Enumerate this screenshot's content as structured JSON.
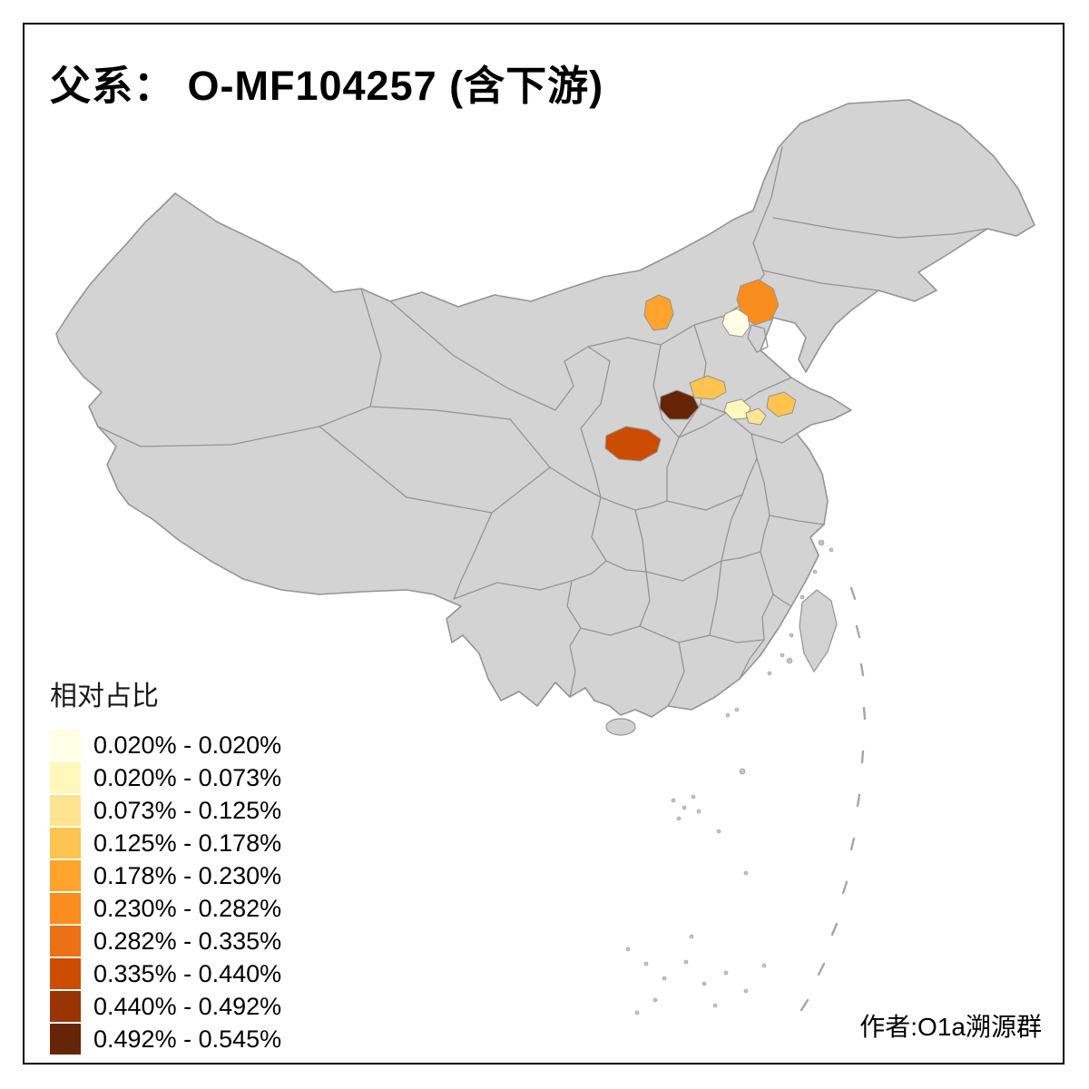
{
  "title": "父系： O-MF104257 (含下游)",
  "attribution": "作者:O1a溯源群",
  "legend": {
    "title": "相对占比",
    "classes": [
      {
        "label": "0.020% - 0.020%",
        "color": "#FFFFE5"
      },
      {
        "label": "0.020% - 0.073%",
        "color": "#FFF7BC"
      },
      {
        "label": "0.073% - 0.125%",
        "color": "#FEE391"
      },
      {
        "label": "0.125% - 0.178%",
        "color": "#FEC44F"
      },
      {
        "label": "0.178% - 0.230%",
        "color": "#FEA32B"
      },
      {
        "label": "0.230% - 0.282%",
        "color": "#FB8C1E"
      },
      {
        "label": "0.282% - 0.335%",
        "color": "#EC7014"
      },
      {
        "label": "0.335% - 0.440%",
        "color": "#CC4C02"
      },
      {
        "label": "0.440% - 0.492%",
        "color": "#993404"
      },
      {
        "label": "0.492% - 0.545%",
        "color": "#662506"
      }
    ]
  },
  "map": {
    "background": "#FFFFFF",
    "frame_color": "#000000",
    "land_fill": "#D3D3D3",
    "border_stroke": "#949494",
    "regions": [
      {
        "id": "beijing",
        "class_index": 0
      },
      {
        "id": "shandong-northwest",
        "class_index": 1
      },
      {
        "id": "shandong-west",
        "class_index": 2
      },
      {
        "id": "hebei-central",
        "class_index": 3
      },
      {
        "id": "shandong-central",
        "class_index": 3
      },
      {
        "id": "inner-mongolia-central",
        "class_index": 4
      },
      {
        "id": "inner-mongolia-east",
        "class_index": 5
      },
      {
        "id": "shaanxi-central",
        "class_index": 7
      },
      {
        "id": "shanxi-south",
        "class_index": 9
      }
    ]
  }
}
